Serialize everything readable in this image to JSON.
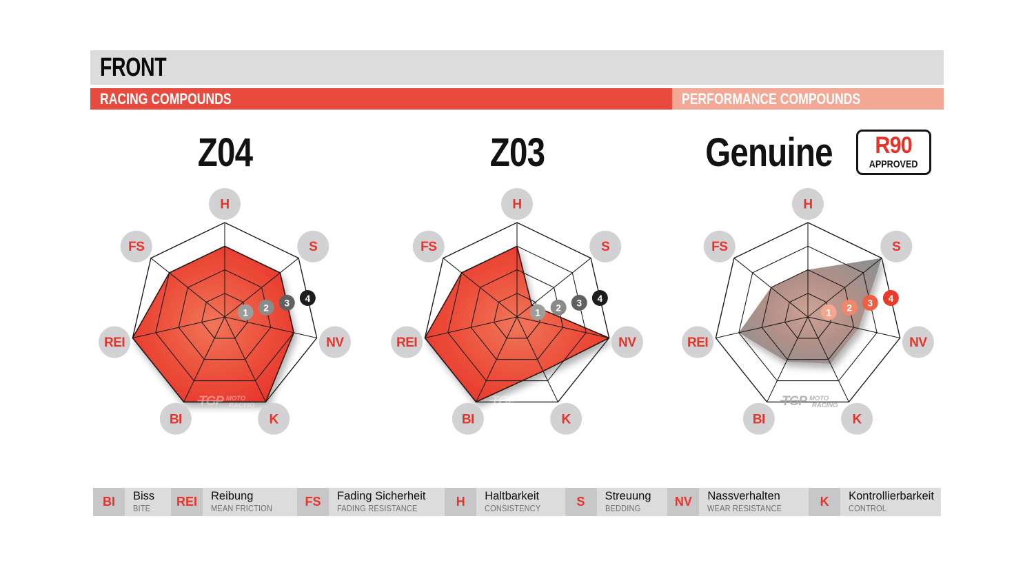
{
  "header": {
    "title": "FRONT",
    "bar_bg": "#dcdcdd",
    "sections": [
      {
        "label": "RACING COMPOUNDS",
        "bg": "#e84b3e",
        "width_pct": 68.2
      },
      {
        "label": "PERFORMANCE COMPOUNDS",
        "bg": "#f3a795",
        "width_pct": 31.8
      }
    ]
  },
  "axes": [
    "H",
    "S",
    "NV",
    "K",
    "BI",
    "REI",
    "FS"
  ],
  "scale": {
    "min": 0,
    "max": 4,
    "ticks": [
      1,
      2,
      3,
      4
    ],
    "tick_position": "between S and NV"
  },
  "chart_data": [
    {
      "type": "radar",
      "title": "Z04",
      "axes": [
        "H",
        "S",
        "NV",
        "K",
        "BI",
        "REI",
        "FS"
      ],
      "values": [
        3,
        3,
        3,
        4,
        4,
        4,
        3
      ],
      "range": [
        0,
        4
      ],
      "grid": "heptagon rings 1-4"
    },
    {
      "type": "radar",
      "title": "Z03",
      "axes": [
        "H",
        "S",
        "NV",
        "K",
        "BI",
        "REI",
        "FS"
      ],
      "values": [
        3,
        0.8,
        4,
        2.55,
        4,
        4,
        3
      ],
      "range": [
        0,
        4
      ],
      "grid": "heptagon rings 1-4"
    },
    {
      "type": "radar",
      "title": "Genuine",
      "axes": [
        "H",
        "S",
        "NV",
        "K",
        "BI",
        "REI",
        "FS"
      ],
      "values": [
        2,
        4,
        2.2,
        2.2,
        2.1,
        3,
        2
      ],
      "range": [
        0,
        4
      ],
      "grid": "heptagon rings 1-4"
    }
  ],
  "charts": [
    {
      "title": "Z04",
      "group": "racing",
      "fill_stops": [
        [
          "0%",
          "#f0765a"
        ],
        [
          "55%",
          "#ec4f3b"
        ],
        [
          "100%",
          "#e63229"
        ]
      ],
      "stroke": "#30120a",
      "tick_colors": [
        "#9d9d9c",
        "#8a8a89",
        "#606060",
        "#1d1d1b"
      ],
      "watermark_color": "#ffffff",
      "watermark_opacity": 0.4
    },
    {
      "title": "Z03",
      "group": "racing",
      "fill_stops": [
        [
          "0%",
          "#f0765a"
        ],
        [
          "55%",
          "#ec4f3b"
        ],
        [
          "100%",
          "#e63229"
        ]
      ],
      "stroke": "#30120a",
      "tick_colors": [
        "#9d9d9c",
        "#8a8a89",
        "#606060",
        "#1d1d1b"
      ],
      "watermark_color": "#ffffff",
      "watermark_opacity": 0.4
    },
    {
      "title": "Genuine",
      "group": "performance",
      "approval_badge": {
        "line1": "R90",
        "line2": "APPROVED",
        "line1_color": "#e6332a",
        "line2_color": "#111111"
      },
      "fill_stops": [
        [
          "0%",
          "#cda294"
        ],
        [
          "50%",
          "#b29088"
        ],
        [
          "100%",
          "#8f8f91"
        ]
      ],
      "stroke": "none",
      "tick_colors": [
        "#f3a78f",
        "#f1876a",
        "#ee5f41",
        "#e93b27"
      ],
      "watermark_color": "#a9a9a9",
      "watermark_opacity": 0.85
    }
  ],
  "axis_label_style": {
    "circle_fill": "#d2d2d4",
    "letter_color": "#e6332a"
  },
  "grid_color": "#1c1c1c",
  "watermark": {
    "logo": "TGP",
    "line1": "MOTO",
    "line2": "RACING"
  },
  "legend": {
    "bg": "#dcdcdd",
    "abbr_bg": "#c7c7c9",
    "abbr_color": "#e6332a",
    "items": [
      {
        "abbr": "BI",
        "name": "Biss",
        "name_en": "BITE"
      },
      {
        "abbr": "REI",
        "name": "Reibung",
        "name_en": "MEAN FRICTION"
      },
      {
        "abbr": "FS",
        "name": "Fading Sicherheit",
        "name_en": "FADING RESISTANCE"
      },
      {
        "abbr": "H",
        "name": "Haltbarkeit",
        "name_en": "CONSISTENCY"
      },
      {
        "abbr": "S",
        "name": "Streuung",
        "name_en": "BEDDING"
      },
      {
        "abbr": "NV",
        "name": "Nassverhalten",
        "name_en": "WEAR RESISTANCE"
      },
      {
        "abbr": "K",
        "name": "Kontrollierbarkeit",
        "name_en": "CONTROL"
      }
    ]
  }
}
